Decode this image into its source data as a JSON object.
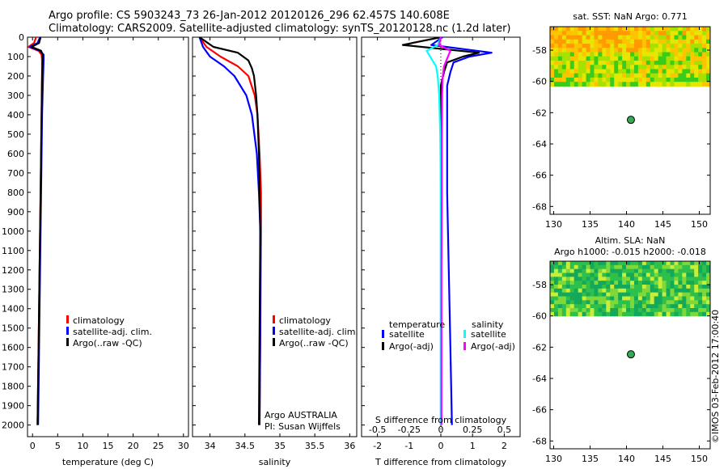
{
  "header": {
    "line1": "Argo profile: CS 5903243_73 26-Jan-2012 20120126_296 62.457S 140.608E",
    "line2": "Climatology: CARS2009. Satellite-adjusted climatology: synTS_20120128.nc (1.2d later)"
  },
  "credit": "©IMOS 03-Feb-2012 17:00:40",
  "colors": {
    "climatology": "#ff0000",
    "satellite": "#0000ff",
    "argo": "#000000",
    "sal_satellite": "#00ffff",
    "sal_argo": "#ff00ff",
    "marker": "#33aa55"
  },
  "chart_data": [
    {
      "id": "temperature",
      "type": "line",
      "xlabel": "temperature (deg C)",
      "ylabel": "",
      "xlim": [
        -1,
        31
      ],
      "ylim": [
        2060,
        0
      ],
      "xticks": [
        0,
        5,
        10,
        15,
        20,
        25,
        30
      ],
      "yticks": [
        0,
        100,
        200,
        300,
        400,
        500,
        600,
        700,
        800,
        900,
        1000,
        1100,
        1200,
        1300,
        1400,
        1500,
        1600,
        1700,
        1800,
        1900,
        2000
      ],
      "legend": {
        "placement": "lower-center",
        "entries": [
          "climatology",
          "satellite-adj. clim.",
          "Argo(..raw -QC)"
        ]
      },
      "series": [
        {
          "name": "climatology",
          "color": "#ff0000",
          "depth": [
            0,
            30,
            50,
            70,
            90,
            120,
            200,
            400,
            800,
            1200,
            1600,
            2000
          ],
          "values": [
            0.7,
            0.3,
            -0.8,
            1.2,
            1.8,
            1.9,
            1.9,
            1.8,
            1.6,
            1.4,
            1.2,
            1.0
          ]
        },
        {
          "name": "satellite-adj. clim.",
          "color": "#0000ff",
          "depth": [
            0,
            30,
            50,
            70,
            90,
            120,
            200,
            400,
            800,
            1200,
            1600,
            2000
          ],
          "values": [
            1.5,
            1.0,
            -0.5,
            1.5,
            2.2,
            2.2,
            2.1,
            1.9,
            1.7,
            1.5,
            1.3,
            1.1
          ]
        },
        {
          "name": "Argo(..raw -QC)",
          "color": "#000000",
          "depth": [
            0,
            30,
            50,
            70,
            90,
            120,
            200,
            400,
            800,
            1200,
            1600,
            2000
          ],
          "values": [
            1.6,
            1.3,
            -0.2,
            1.7,
            2.0,
            2.0,
            1.9,
            1.8,
            1.6,
            1.4,
            1.2,
            1.0
          ]
        }
      ]
    },
    {
      "id": "salinity",
      "type": "line",
      "xlabel": "salinity",
      "xlim": [
        33.75,
        36.1
      ],
      "ylim": [
        2060,
        0
      ],
      "xticks": [
        34,
        34.5,
        35,
        35.5,
        36
      ],
      "legend": {
        "placement": "lower-center",
        "entries": [
          "climatology",
          "satellite-adj. clim.",
          "Argo(..raw -QC)"
        ]
      },
      "annotation": [
        "Argo AUSTRALIA",
        "PI: Susan Wijffels"
      ],
      "series": [
        {
          "name": "climatology",
          "color": "#ff0000",
          "depth": [
            0,
            50,
            100,
            150,
            200,
            300,
            400,
            600,
            800,
            1000,
            1500,
            2000
          ],
          "values": [
            33.85,
            33.95,
            34.15,
            34.4,
            34.55,
            34.64,
            34.68,
            34.71,
            34.73,
            34.73,
            34.72,
            34.71
          ]
        },
        {
          "name": "satellite-adj. clim.",
          "color": "#0000ff",
          "depth": [
            0,
            50,
            100,
            150,
            200,
            300,
            400,
            600,
            800,
            1000,
            1500,
            2000
          ],
          "values": [
            33.85,
            33.9,
            34.0,
            34.2,
            34.35,
            34.52,
            34.6,
            34.67,
            34.7,
            34.72,
            34.72,
            34.71
          ]
        },
        {
          "name": "Argo(..raw -QC)",
          "color": "#000000",
          "depth": [
            0,
            50,
            80,
            120,
            160,
            200,
            300,
            400,
            600,
            800,
            1000,
            1500,
            2000
          ],
          "values": [
            33.85,
            34.05,
            34.4,
            34.55,
            34.6,
            34.63,
            34.66,
            34.68,
            34.7,
            34.71,
            34.72,
            34.71,
            34.7
          ]
        }
      ]
    },
    {
      "id": "difference",
      "type": "line",
      "xlabel": "T difference from climatology",
      "xlabel_top": "S difference from climatology",
      "xlim": [
        -2.5,
        2.5
      ],
      "ylim": [
        2060,
        0
      ],
      "xticks": [
        -2,
        -1,
        0,
        1,
        2
      ],
      "xticks_top_labels": [
        "-0.5",
        "-0.25",
        "0",
        "0.25",
        "0.5"
      ],
      "legend": {
        "placement": "lower-center",
        "groups": [
          {
            "title": "temperature",
            "entries": [
              "satellite",
              "Argo(-adj)"
            ]
          },
          {
            "title": "salinity",
            "entries": [
              "satellite",
              "Argo(-adj)"
            ]
          }
        ]
      },
      "series": [
        {
          "name": "temperature satellite",
          "color": "#0000ff",
          "depth": [
            0,
            40,
            80,
            100,
            130,
            180,
            250,
            400,
            800,
            1200,
            1600,
            2000
          ],
          "values": [
            0.05,
            -0.3,
            1.6,
            0.9,
            0.4,
            0.3,
            0.2,
            0.2,
            0.2,
            0.25,
            0.3,
            0.35
          ]
        },
        {
          "name": "temperature Argo(-adj)",
          "color": "#000000",
          "depth": [
            0,
            40,
            80,
            100,
            130,
            180,
            250,
            400,
            800,
            1200,
            1600,
            2000
          ],
          "values": [
            0.0,
            -1.2,
            1.2,
            0.7,
            0.2,
            0.1,
            0.0,
            0.0,
            0.0,
            0.0,
            0.0,
            0.0
          ]
        },
        {
          "name": "salinity satellite",
          "color": "#00ffff",
          "depth": [
            0,
            40,
            70,
            110,
            150,
            200,
            300,
            500,
            800,
            1200,
            1600,
            2000
          ],
          "values": [
            0.0,
            -0.1,
            -0.45,
            -0.3,
            -0.15,
            -0.1,
            -0.05,
            -0.02,
            0.0,
            0.0,
            0.0,
            0.0
          ]
        },
        {
          "name": "salinity Argo(-adj)",
          "color": "#ff00ff",
          "depth": [
            0,
            40,
            70,
            110,
            150,
            200,
            300,
            500,
            800,
            1200,
            1600,
            2000
          ],
          "values": [
            0.0,
            -0.05,
            0.3,
            0.2,
            0.1,
            0.06,
            0.04,
            0.03,
            0.03,
            0.02,
            0.02,
            0.02
          ]
        }
      ]
    }
  ],
  "maps": [
    {
      "id": "sst",
      "title": "sat. SST: NaN Argo: 0.771",
      "xlim": [
        129.5,
        151.5
      ],
      "ylim": [
        -68.5,
        -56.5
      ],
      "xticks": [
        130,
        135,
        140,
        145,
        150
      ],
      "yticks": [
        -58,
        -60,
        -62,
        -64,
        -66,
        -68
      ],
      "data_extent_lat": [
        -56.5,
        -60.3
      ],
      "marker": {
        "lon": 140.608,
        "lat": -62.457
      }
    },
    {
      "id": "sla",
      "title_line1": "Altim. SLA: NaN",
      "title_line2": "Argo h1000: -0.015 h2000: -0.018",
      "xlim": [
        129.5,
        151.5
      ],
      "ylim": [
        -68.5,
        -56.5
      ],
      "xticks": [
        130,
        135,
        140,
        145,
        150
      ],
      "yticks": [
        -58,
        -60,
        -62,
        -64,
        -66,
        -68
      ],
      "data_extent_lat": [
        -56.5,
        -60.0
      ],
      "marker": {
        "lon": 140.608,
        "lat": -62.457
      }
    }
  ]
}
